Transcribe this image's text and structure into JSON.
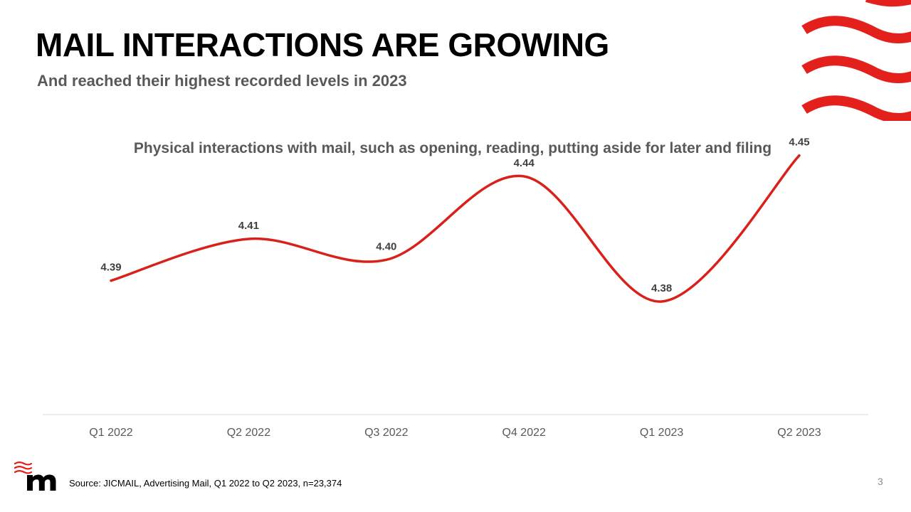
{
  "slide": {
    "title": "MAIL INTERACTIONS ARE GROWING",
    "subtitle": "And reached their highest recorded levels in 2023",
    "source": "Source: JICMAIL, Advertising Mail, Q1 2022 to Q2 2023, n=23,374",
    "page_number": "3"
  },
  "colors": {
    "accent": "#e3201b",
    "line": "#d9211c",
    "title_text": "#000000",
    "subtitle_text": "#595959",
    "axis_line": "#d9d9d9"
  },
  "decor": {
    "waves_icon": "red-waves-decoration",
    "logo_icon": "m-logo"
  },
  "chart_data": {
    "type": "line",
    "title": "Physical interactions with mail, such as opening, reading, putting aside for later and filing",
    "categories": [
      "Q1 2022",
      "Q2 2022",
      "Q3 2022",
      "Q4 2022",
      "Q1 2023",
      "Q2 2023"
    ],
    "values": [
      4.39,
      4.41,
      4.4,
      4.44,
      4.38,
      4.45
    ],
    "data_labels": [
      "4.39",
      "4.41",
      "4.40",
      "4.44",
      "4.38",
      "4.45"
    ],
    "xlabel": "",
    "ylabel": "",
    "ylim": [
      4.32,
      4.47
    ],
    "smooth": true,
    "grid": false,
    "legend": "none"
  }
}
